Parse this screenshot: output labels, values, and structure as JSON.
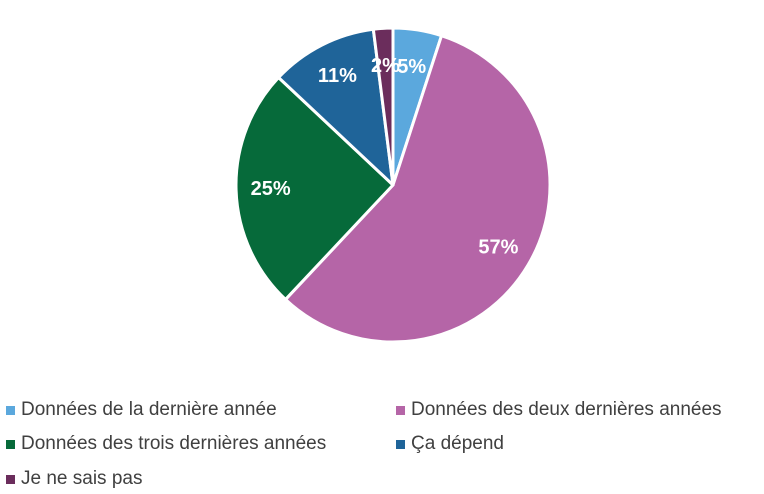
{
  "chart_data": {
    "type": "pie",
    "start_angle_deg": 0,
    "direction": "clockwise",
    "slices": [
      {
        "label": "Données de la dernière année",
        "value": 5,
        "display": "5%",
        "color": "#5ba8dd"
      },
      {
        "label": "Données des deux dernières années",
        "value": 57,
        "display": "57%",
        "color": "#b565a7"
      },
      {
        "label": "Données des trois dernières années",
        "value": 25,
        "display": "25%",
        "color": "#066a3a"
      },
      {
        "label": "Ça dépend",
        "value": 11,
        "display": "11%",
        "color": "#1f6499"
      },
      {
        "label": "Je ne sais pas",
        "value": 2,
        "display": "2%",
        "color": "#6b2d5c"
      }
    ],
    "data_label_colors": {
      "inside": "#ffffff",
      "outside": "#595959"
    },
    "legend_placement": "bottom"
  }
}
